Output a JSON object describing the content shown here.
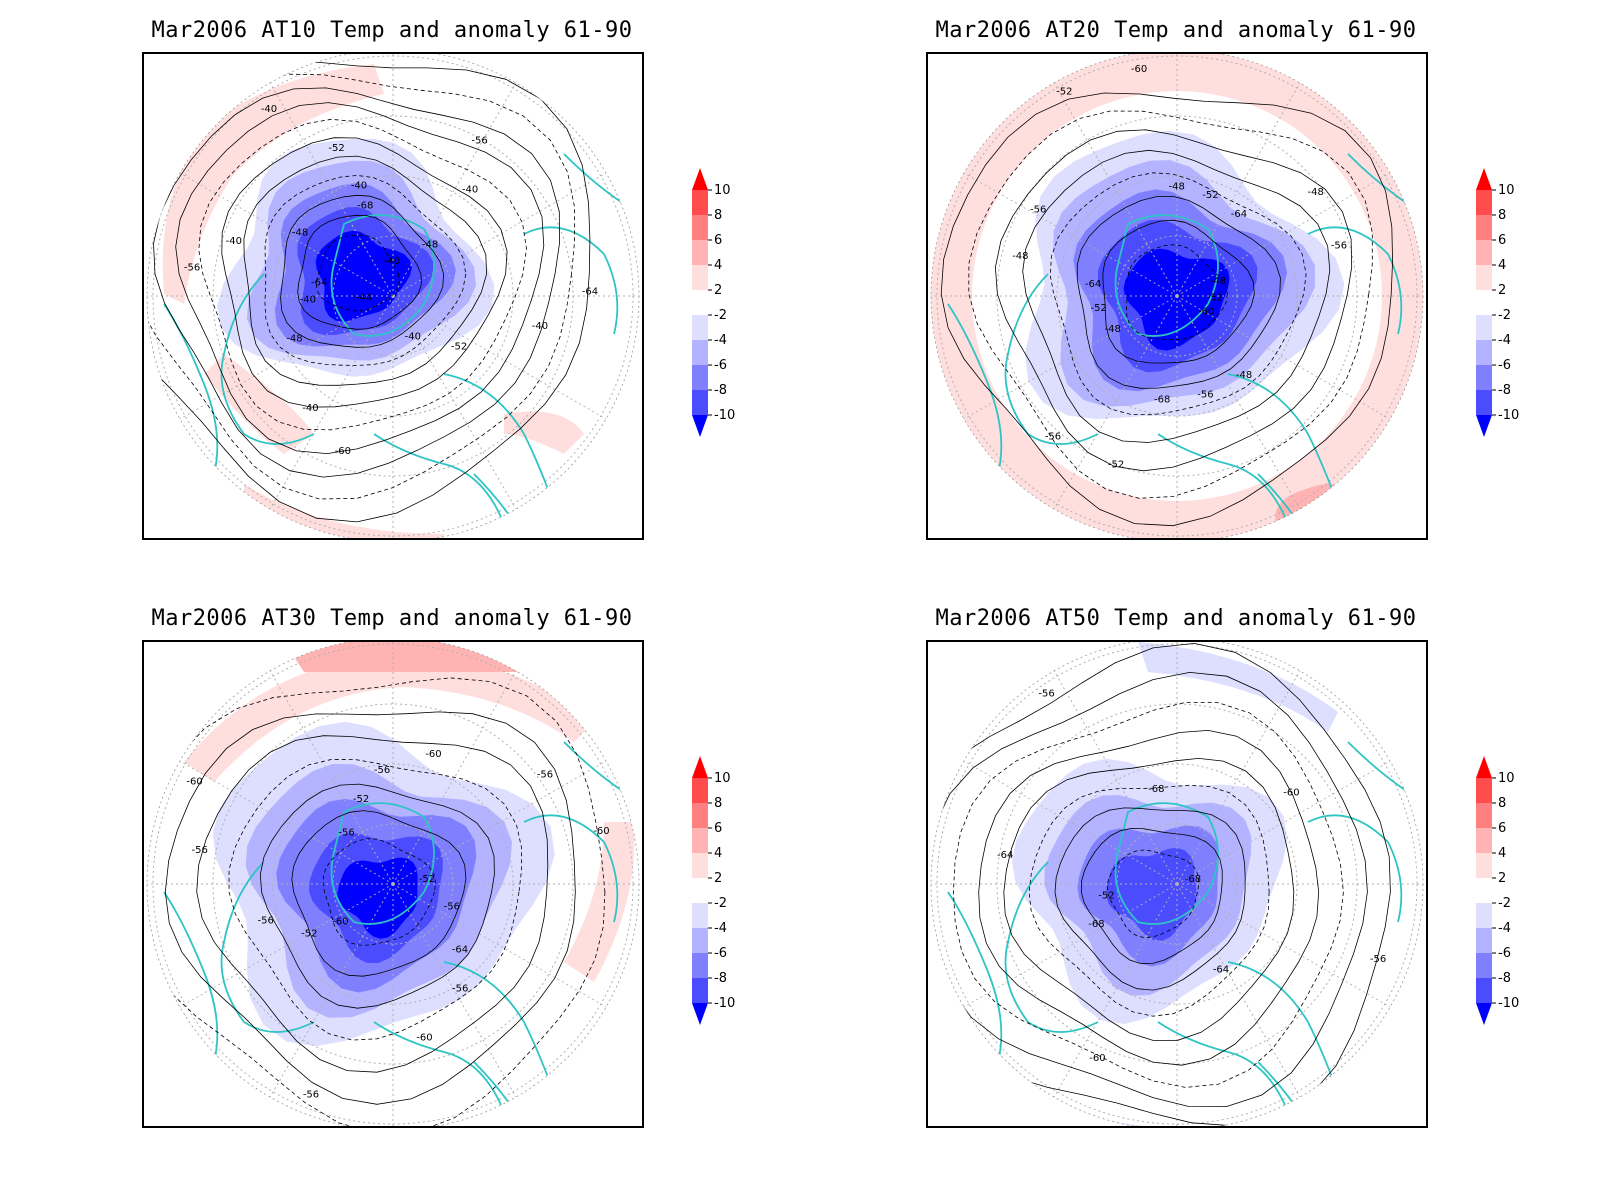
{
  "panels": [
    {
      "title": "Mar2006 AT10 Temp and anomaly 61-90",
      "contour_labels": [
        "-40",
        "-40",
        "-40",
        "-40",
        "-40",
        "-40",
        "-40",
        "-40",
        "-40",
        "-40",
        "-44",
        "-44",
        "-48",
        "-48",
        "-48",
        "-52",
        "-52",
        "-56",
        "-56",
        "-60",
        "-60",
        "-64",
        "-64",
        "-68"
      ],
      "anomaly_center": "strong-cold"
    },
    {
      "title": "Mar2006 AT20 Temp and anomaly 61-90",
      "contour_labels": [
        "-48",
        "-48",
        "-48",
        "-48",
        "-48",
        "-48",
        "-52",
        "-52",
        "-52",
        "-52",
        "-52",
        "-56",
        "-56",
        "-56",
        "-56",
        "-60",
        "-60",
        "-64",
        "-64",
        "-68"
      ],
      "anomaly_center": "cold"
    },
    {
      "title": "Mar2006 AT30 Temp and anomaly 61-90",
      "contour_labels": [
        "-52",
        "-52",
        "-56",
        "-56",
        "-56",
        "-56",
        "-56",
        "-56",
        "-56",
        "-56",
        "-60",
        "-60",
        "-60",
        "-60",
        "-60",
        "-52",
        "-64"
      ],
      "anomaly_center": "cold"
    },
    {
      "title": "Mar2006 AT50 Temp and anomaly 61-90",
      "contour_labels": [
        "-68",
        "-68",
        "-68",
        "-64",
        "-64",
        "-60",
        "-60",
        "-56",
        "-56",
        "-52"
      ],
      "anomaly_center": "weak-cold"
    }
  ],
  "colorbar": {
    "labels": [
      "10",
      "8",
      "6",
      "4",
      "2",
      "-2",
      "-4",
      "-6",
      "-8",
      "-10"
    ],
    "colors": [
      "#ff0000",
      "#ff4c4c",
      "#ff8080",
      "#ffb3b3",
      "#ffdede",
      "#ffffff",
      "#dedeff",
      "#b3b3ff",
      "#8080ff",
      "#4c4cff",
      "#0000ff"
    ]
  },
  "colors": {
    "coastline": "#2ec4c4",
    "contour": "#000000",
    "grid": "#b0b0b0"
  }
}
